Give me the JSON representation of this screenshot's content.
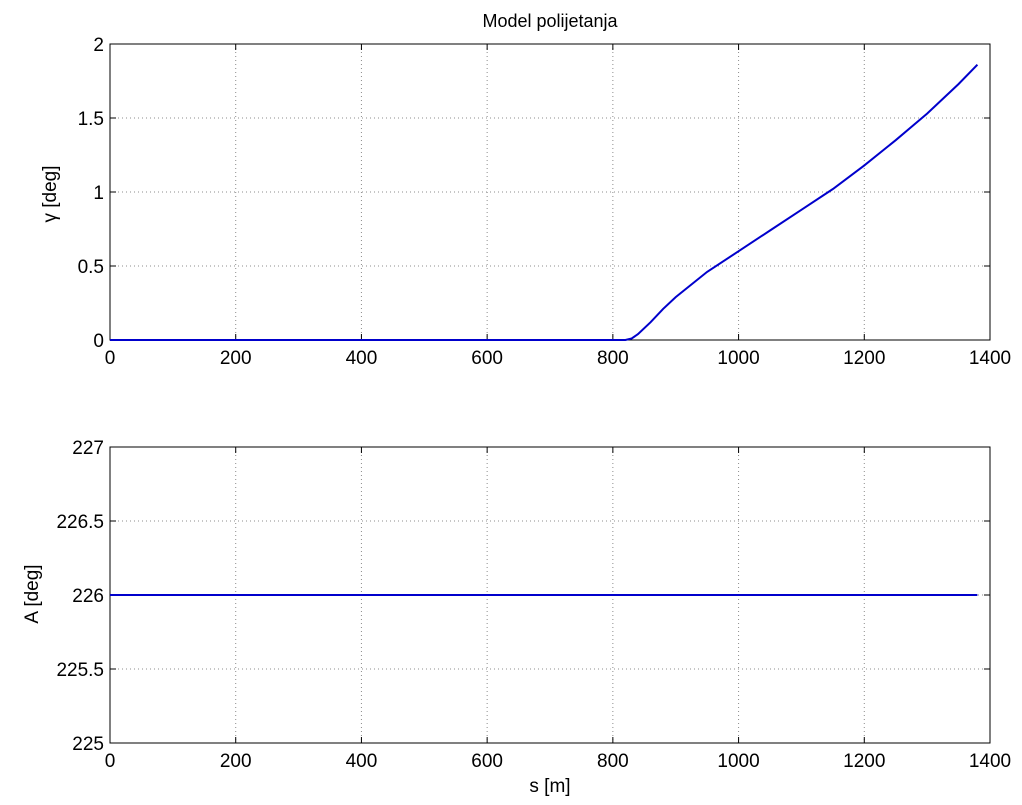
{
  "title": "Model polijetanja",
  "colors": {
    "series": "#0000cc",
    "grid": "#8c8c8c",
    "axes": "#000000"
  },
  "chart_data": [
    {
      "type": "line",
      "title": "Model polijetanja",
      "xlabel": "",
      "ylabel": "γ [deg]",
      "xlim": [
        0,
        1400
      ],
      "ylim": [
        0,
        2
      ],
      "grid": true,
      "x_ticks": [
        "0",
        "200",
        "400",
        "600",
        "800",
        "1000",
        "1200",
        "1400"
      ],
      "y_ticks": [
        "0",
        "0.5",
        "1",
        "1.5",
        "2"
      ],
      "series": [
        {
          "x": [
            0,
            100,
            200,
            300,
            400,
            500,
            600,
            700,
            800,
            820,
            830,
            840,
            860,
            880,
            900,
            950,
            1000,
            1050,
            1100,
            1150,
            1200,
            1250,
            1300,
            1350,
            1380
          ],
          "y": [
            0,
            0,
            0,
            0,
            0,
            0,
            0,
            0,
            0,
            0,
            0.01,
            0.04,
            0.12,
            0.21,
            0.29,
            0.46,
            0.6,
            0.74,
            0.88,
            1.02,
            1.18,
            1.35,
            1.53,
            1.73,
            1.86
          ]
        }
      ]
    },
    {
      "type": "line",
      "title": "",
      "xlabel": "s  [m]",
      "ylabel": "A [deg]",
      "xlim": [
        0,
        1400
      ],
      "ylim": [
        225,
        227
      ],
      "grid": true,
      "x_ticks": [
        "0",
        "200",
        "400",
        "600",
        "800",
        "1000",
        "1200",
        "1400"
      ],
      "y_ticks": [
        "225",
        "225.5",
        "226",
        "226.5",
        "227"
      ],
      "series": [
        {
          "x": [
            0,
            1380
          ],
          "y": [
            226,
            226
          ]
        }
      ]
    }
  ]
}
